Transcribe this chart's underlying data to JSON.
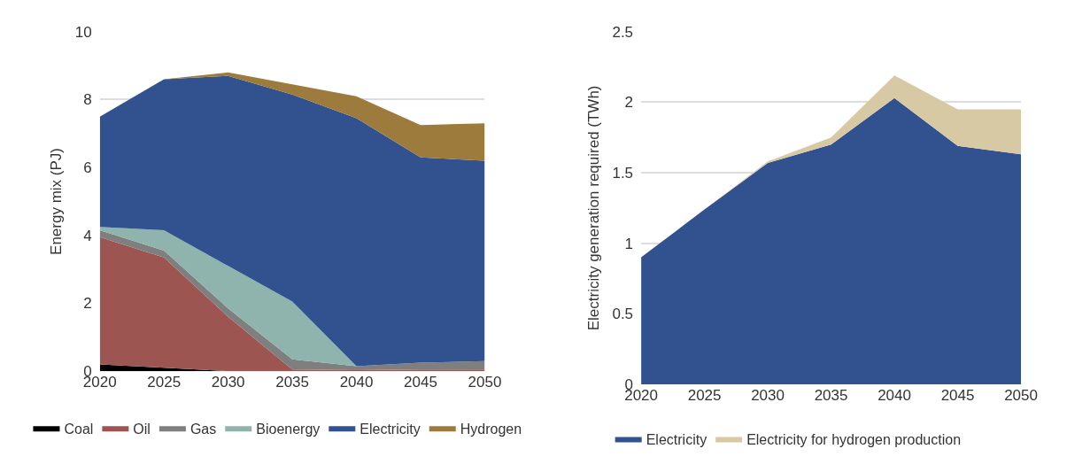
{
  "chart_data": [
    {
      "type": "area",
      "stacked": true,
      "ylabel": "Energy mix (PJ)",
      "x": [
        2020,
        2025,
        2030,
        2035,
        2040,
        2045,
        2050
      ],
      "xlim": [
        2020,
        2050
      ],
      "xticks": [
        2020,
        2025,
        2030,
        2035,
        2040,
        2045,
        2050
      ],
      "ylim": [
        0,
        10
      ],
      "yticks": [
        0,
        2,
        4,
        6,
        8,
        10
      ],
      "grid": "y",
      "legend": "bottom",
      "marker": "none",
      "series": [
        {
          "name": "Coal",
          "color": "#000000",
          "values": [
            0.2,
            0.1,
            0,
            0,
            0,
            0,
            0
          ]
        },
        {
          "name": "Oil",
          "color": "#9c5550",
          "values": [
            3.75,
            3.25,
            1.6,
            0.05,
            0.03,
            0.05,
            0.05
          ]
        },
        {
          "name": "Gas",
          "color": "#7f7f7f",
          "values": [
            0.2,
            0.2,
            0.25,
            0.3,
            0.12,
            0.2,
            0.25
          ]
        },
        {
          "name": "Bioenergy",
          "color": "#8fb3ad",
          "values": [
            0.1,
            0.6,
            1.25,
            1.7,
            0,
            0,
            0
          ]
        },
        {
          "name": "Electricity",
          "color": "#31528f",
          "values": [
            3.25,
            4.45,
            5.6,
            6.1,
            7.3,
            6.05,
            5.9
          ]
        },
        {
          "name": "Hydrogen",
          "color": "#9c7b3c",
          "values": [
            0,
            0,
            0.1,
            0.3,
            0.65,
            0.95,
            1.1
          ]
        }
      ]
    },
    {
      "type": "area",
      "stacked": true,
      "ylabel": "Electricity generation required (TWh)",
      "x": [
        2020,
        2025,
        2030,
        2035,
        2040,
        2045,
        2050
      ],
      "xlim": [
        2020,
        2050
      ],
      "xticks": [
        2020,
        2025,
        2030,
        2035,
        2040,
        2045,
        2050
      ],
      "ylim": [
        0,
        2.5
      ],
      "yticks": [
        0,
        0.5,
        1,
        1.5,
        2,
        2.5
      ],
      "grid": "y",
      "legend": "bottom",
      "marker": "none",
      "series": [
        {
          "name": "Electricity",
          "color": "#31528f",
          "values": [
            0.9,
            1.24,
            1.57,
            1.7,
            2.03,
            1.69,
            1.63
          ]
        },
        {
          "name": "Electricity for hydrogen production",
          "color": "#d8c9a5",
          "values": [
            0,
            0,
            0.01,
            0.05,
            0.16,
            0.26,
            0.32
          ]
        }
      ]
    }
  ]
}
